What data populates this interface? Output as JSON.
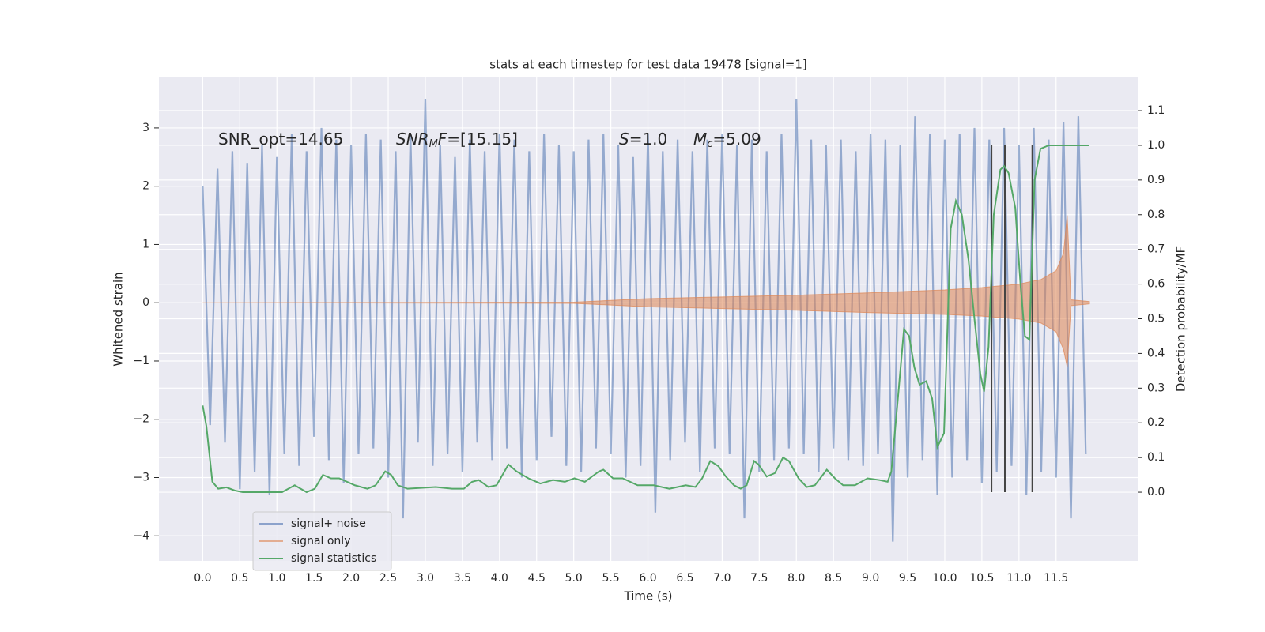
{
  "chart_data": {
    "type": "line",
    "title": "stats at each timestep for test data 19478 [signal=1]",
    "xlabel": "Time (s)",
    "ylabel": "Whitened strain",
    "y2label": "Detection probability/MF",
    "xlim": [
      -0.59,
      12.6
    ],
    "ylim": [
      -4.43,
      3.88
    ],
    "y2lim": [
      -0.198,
      1.198
    ],
    "xticks": [
      {
        "value": 0,
        "label": "0.0"
      },
      0.5,
      {
        "value": 1,
        "label": "1.0"
      },
      1.5,
      {
        "value": 2,
        "label": "2.0"
      },
      2.5,
      {
        "value": 3,
        "label": "3.0"
      },
      3.5,
      {
        "value": 4,
        "label": "4.0"
      },
      4.5,
      {
        "value": 5,
        "label": "5.0"
      },
      5.5,
      {
        "value": 6,
        "label": "6.0"
      },
      6.5,
      {
        "value": 7,
        "label": "7.0"
      },
      7.5,
      {
        "value": 8,
        "label": "8.0"
      },
      8.5,
      {
        "value": 9,
        "label": "9.0"
      },
      9.5,
      {
        "value": 10,
        "label": "10.0"
      },
      10.5,
      {
        "value": 11,
        "label": "11.0"
      },
      11.5
    ],
    "yticks": [
      {
        "value": -4,
        "label": "−4"
      },
      {
        "value": -3,
        "label": "−3"
      },
      {
        "value": -2,
        "label": "−2"
      },
      {
        "value": -1,
        "label": "−1"
      },
      0,
      1,
      2,
      3
    ],
    "y2ticks": [
      {
        "value": 0,
        "label": "0.0"
      },
      0.1,
      0.2,
      0.3,
      0.4,
      0.5,
      0.6,
      0.7,
      0.8,
      0.9,
      {
        "value": 1,
        "label": "1.0"
      },
      1.1
    ],
    "grid": true,
    "legend": "lower left",
    "series": [
      {
        "name": "signal+ noise",
        "color": "#4c72b0",
        "style": "noise",
        "x": [
          0,
          0.1,
          0.2,
          0.3,
          0.4,
          0.5,
          0.6,
          0.7,
          0.8,
          0.9,
          1,
          1.1,
          1.2,
          1.3,
          1.4,
          1.5,
          1.6,
          1.7,
          1.8,
          1.9,
          2,
          2.1,
          2.2,
          2.3,
          2.4,
          2.5,
          2.6,
          2.7,
          2.8,
          2.9,
          3,
          3.1,
          3.2,
          3.3,
          3.4,
          3.5,
          3.6,
          3.7,
          3.8,
          3.9,
          4,
          4.1,
          4.2,
          4.3,
          4.4,
          4.5,
          4.6,
          4.7,
          4.8,
          4.9,
          5,
          5.1,
          5.2,
          5.3,
          5.4,
          5.5,
          5.6,
          5.7,
          5.8,
          5.9,
          6,
          6.1,
          6.2,
          6.3,
          6.4,
          6.5,
          6.6,
          6.7,
          6.8,
          6.9,
          7,
          7.1,
          7.2,
          7.3,
          7.4,
          7.5,
          7.6,
          7.7,
          7.8,
          7.9,
          8,
          8.1,
          8.2,
          8.3,
          8.4,
          8.5,
          8.6,
          8.7,
          8.8,
          8.9,
          9,
          9.1,
          9.2,
          9.3,
          9.4,
          9.5,
          9.6,
          9.7,
          9.8,
          9.9,
          10,
          10.1,
          10.2,
          10.3,
          10.4,
          10.5,
          10.6,
          10.7,
          10.8,
          10.9,
          11,
          11.1,
          11.2,
          11.3,
          11.4,
          11.5,
          11.6,
          11.7,
          11.8,
          11.9
        ],
        "values": [
          2.0,
          -2.1,
          2.3,
          -2.4,
          2.6,
          -3.2,
          2.4,
          -2.9,
          2.7,
          -3.3,
          2.5,
          -2.6,
          2.9,
          -2.8,
          2.6,
          -2.3,
          3.0,
          -2.7,
          2.8,
          -3.1,
          2.7,
          -2.6,
          2.9,
          -2.5,
          2.8,
          -3.0,
          2.6,
          -3.7,
          2.9,
          -2.4,
          3.5,
          -2.8,
          2.7,
          -2.6,
          2.5,
          -2.9,
          2.8,
          -2.4,
          2.6,
          -2.7,
          2.9,
          -2.5,
          2.8,
          -3.0,
          2.6,
          -2.7,
          2.9,
          -2.3,
          2.7,
          -2.8,
          2.6,
          -2.9,
          2.8,
          -2.5,
          2.9,
          -2.6,
          2.7,
          -3.0,
          2.5,
          -2.8,
          2.9,
          -3.6,
          2.6,
          -2.7,
          2.8,
          -2.4,
          2.6,
          -2.9,
          2.8,
          -2.5,
          2.9,
          -2.6,
          2.7,
          -3.7,
          2.8,
          -2.9,
          2.6,
          -2.7,
          2.9,
          -2.5,
          3.5,
          -2.6,
          2.8,
          -2.9,
          2.7,
          -2.5,
          2.8,
          -2.7,
          2.6,
          -2.8,
          2.9,
          -2.6,
          2.8,
          -4.1,
          2.7,
          -3.0,
          3.2,
          -2.7,
          2.9,
          -3.3,
          2.8,
          -3.0,
          2.9,
          -2.7,
          3.0,
          -3.1,
          2.8,
          -2.9,
          3.0,
          -2.8,
          2.7,
          -3.3,
          3.0,
          -2.9,
          2.8,
          -3.0,
          3.1,
          -3.7,
          3.2,
          -2.6
        ]
      },
      {
        "name": "signal only",
        "color": "#dd8452",
        "style": "band",
        "x": [
          0,
          5.0,
          5.5,
          6,
          7,
          8,
          9,
          10,
          10.5,
          11,
          11.3,
          11.5,
          11.6,
          11.65,
          11.7,
          11.95
        ],
        "values": [
          0,
          0.01,
          0.04,
          0.07,
          0.1,
          0.13,
          0.17,
          0.22,
          0.26,
          0.32,
          0.4,
          0.55,
          0.85,
          1.5,
          0.05,
          0.02
        ],
        "lower": [
          0,
          -0.01,
          -0.04,
          -0.07,
          -0.1,
          -0.13,
          -0.17,
          -0.2,
          -0.23,
          -0.28,
          -0.35,
          -0.5,
          -0.8,
          -1.1,
          -0.05,
          -0.02
        ]
      },
      {
        "name": "signal statistics",
        "color": "#55a868",
        "style": "line",
        "axis": "y2",
        "x": [
          0,
          0.05,
          0.13,
          0.21,
          0.32,
          0.43,
          0.54,
          0.65,
          1.07,
          1.24,
          1.4,
          1.51,
          1.62,
          1.73,
          1.84,
          2.05,
          2.22,
          2.33,
          2.46,
          2.54,
          2.63,
          2.76,
          3.14,
          3.36,
          3.52,
          3.63,
          3.72,
          3.85,
          3.96,
          4.12,
          4.23,
          4.39,
          4.55,
          4.72,
          4.88,
          5.01,
          5.15,
          5.34,
          5.4,
          5.53,
          5.66,
          5.86,
          6.08,
          6.29,
          6.51,
          6.64,
          6.73,
          6.84,
          6.95,
          7.05,
          7.16,
          7.25,
          7.33,
          7.43,
          7.49,
          7.6,
          7.71,
          7.82,
          7.9,
          8.03,
          8.14,
          8.25,
          8.41,
          8.52,
          8.63,
          8.79,
          8.96,
          9.12,
          9.23,
          9.28,
          9.36,
          9.45,
          9.52,
          9.59,
          9.66,
          9.75,
          9.83,
          9.9,
          9.99,
          10.08,
          10.15,
          10.23,
          10.32,
          10.4,
          10.48,
          10.53,
          10.59,
          10.66,
          10.75,
          10.8,
          10.86,
          10.95,
          11.02,
          11.08,
          11.14,
          11.21,
          11.29,
          11.4,
          11.95
        ],
        "values": [
          0.25,
          0.19,
          0.03,
          0.01,
          0.014,
          0.005,
          0,
          0,
          0,
          0.02,
          0,
          0.01,
          0.05,
          0.04,
          0.04,
          0.02,
          0.01,
          0.02,
          0.06,
          0.05,
          0.02,
          0.01,
          0.015,
          0.01,
          0.01,
          0.03,
          0.035,
          0.015,
          0.02,
          0.08,
          0.06,
          0.04,
          0.025,
          0.035,
          0.03,
          0.04,
          0.03,
          0.06,
          0.065,
          0.04,
          0.04,
          0.02,
          0.02,
          0.01,
          0.02,
          0.015,
          0.04,
          0.09,
          0.075,
          0.045,
          0.02,
          0.01,
          0.02,
          0.09,
          0.08,
          0.045,
          0.055,
          0.1,
          0.09,
          0.04,
          0.015,
          0.02,
          0.065,
          0.04,
          0.02,
          0.02,
          0.04,
          0.035,
          0.03,
          0.06,
          0.25,
          0.47,
          0.45,
          0.36,
          0.31,
          0.32,
          0.27,
          0.13,
          0.17,
          0.76,
          0.84,
          0.8,
          0.67,
          0.5,
          0.34,
          0.29,
          0.42,
          0.8,
          0.93,
          0.94,
          0.92,
          0.82,
          0.6,
          0.45,
          0.44,
          0.9,
          0.99,
          1.0,
          1.0
        ]
      }
    ],
    "vlines": {
      "x": [
        10.63,
        10.81,
        11.18
      ],
      "y2range": [
        0,
        1.0
      ],
      "color": "#444444"
    },
    "annotations": [
      {
        "parts": [
          {
            "text": "SNR_opt=14.65"
          }
        ]
      },
      {
        "parts": [
          {
            "text": "SNR",
            "style": "italic"
          },
          {
            "text": "M",
            "style": "sub"
          },
          {
            "text": "F",
            "style": "italic"
          },
          {
            "text": "=[15.15]"
          }
        ]
      },
      {
        "parts": [
          {
            "text": "S",
            "style": "italic"
          },
          {
            "text": "=1.0"
          }
        ]
      },
      {
        "parts": [
          {
            "text": "M",
            "style": "italic"
          },
          {
            "text": "c",
            "style": "sub"
          },
          {
            "text": "=5.09"
          }
        ]
      }
    ]
  }
}
